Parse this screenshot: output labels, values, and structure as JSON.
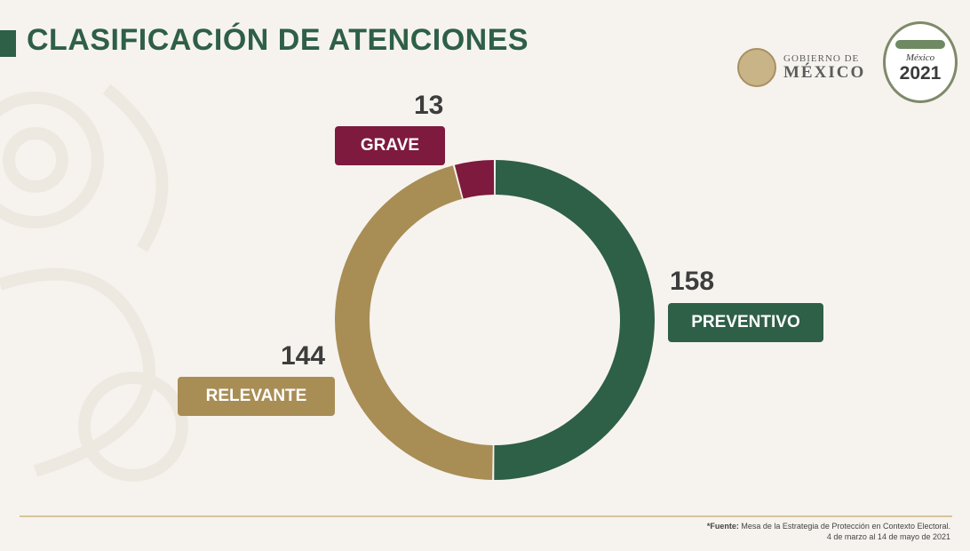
{
  "title": "CLASIFICACIÓN DE ATENCIONES",
  "logos": {
    "gobierno_line1": "GOBIERNO DE",
    "gobierno_line2": "MÉXICO",
    "badge_top": "México",
    "badge_year": "2021"
  },
  "colors": {
    "preventivo": "#2e5f47",
    "relevante": "#a88d55",
    "grave": "#7d1a3d",
    "title": "#2e5f47"
  },
  "chart_data": {
    "type": "pie",
    "style": "donut",
    "title": "CLASIFICACIÓN DE ATENCIONES",
    "categories": [
      "PREVENTIVO",
      "RELEVANTE",
      "GRAVE"
    ],
    "values": [
      158,
      144,
      13
    ],
    "value_labels": [
      "158",
      "144",
      "13"
    ]
  },
  "footer": {
    "source_label": "*Fuente:",
    "source_text": "Mesa de la Estrategia de Protección en Contexto Electoral.",
    "date_range": "4 de marzo al 14 de mayo de 2021"
  }
}
